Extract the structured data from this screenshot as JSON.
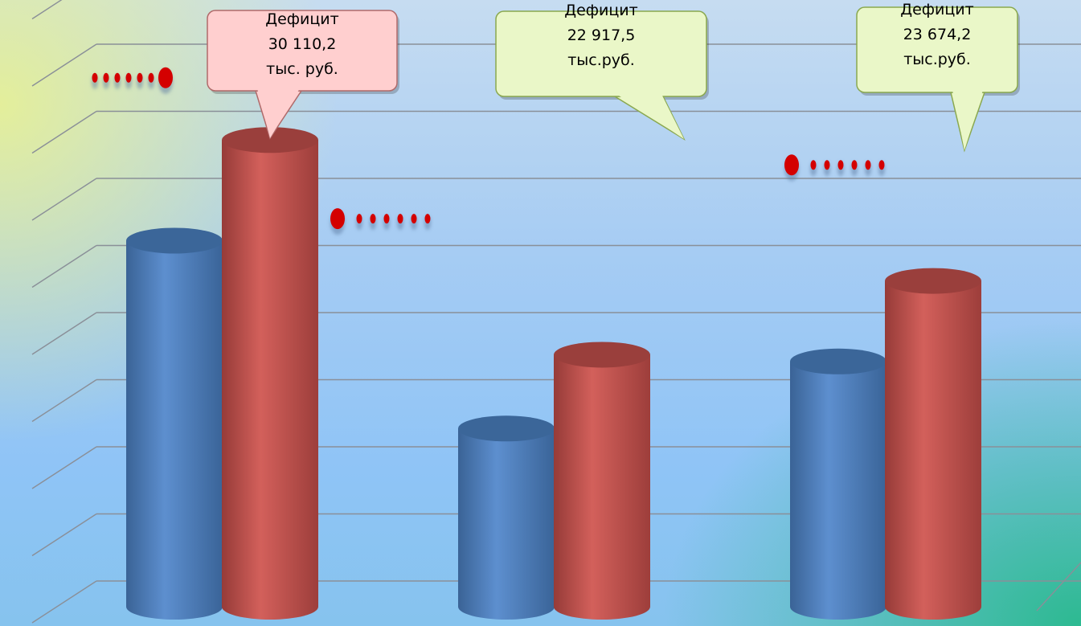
{
  "chart_data": {
    "type": "bar",
    "style": "3d-cylinder",
    "categories": [
      "",
      "",
      ""
    ],
    "series": [
      {
        "color": "#4f81bd",
        "values": [
          5.0,
          2.2,
          3.2
        ]
      },
      {
        "color": "#c0504d",
        "values": [
          6.5,
          3.3,
          4.4
        ]
      }
    ],
    "ylim": [
      0,
      9
    ],
    "grid": true,
    "legend": "none",
    "trend_markers": [
      {
        "category_index": 0,
        "value": 7.5,
        "direction": "left"
      },
      {
        "category_index": 1,
        "value": 5.4,
        "direction": "right"
      },
      {
        "category_index": 2,
        "value": 6.2,
        "direction": "right"
      }
    ],
    "annotations": [
      {
        "category_index": 0,
        "lines": [
          "Дефицит",
          "30 110,2",
          "тыс. руб."
        ],
        "color": "#ffcfcf"
      },
      {
        "category_index": 1,
        "lines": [
          "Дефицит",
          "22 917,5",
          "тыс.руб."
        ],
        "color": "#eaf7c8"
      },
      {
        "category_index": 2,
        "lines": [
          "Дефицит",
          "23 674,2",
          "тыс.руб."
        ],
        "color": "#eaf7c8"
      }
    ]
  }
}
